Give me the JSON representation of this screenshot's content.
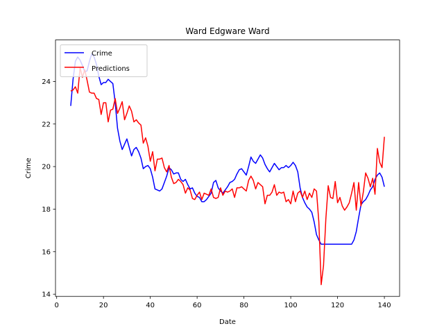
{
  "chart_data": {
    "type": "line",
    "title": "Ward Edgware Ward",
    "xlabel": "Date",
    "ylabel": "Crime",
    "xlim": [
      -0.5,
      146.5
    ],
    "ylim": [
      13.9,
      25.95
    ],
    "xticks": [
      0,
      20,
      40,
      60,
      80,
      100,
      120,
      140
    ],
    "yticks": [
      14,
      16,
      18,
      20,
      22,
      24
    ],
    "grid": false,
    "legend": "upper-left",
    "series": [
      {
        "name": "Crime",
        "color": "#0000ff",
        "x": [
          6,
          7,
          8,
          9,
          10,
          11,
          12,
          13,
          14,
          15,
          16,
          17,
          18,
          19,
          20,
          21,
          22,
          23,
          24,
          25,
          26,
          27,
          28,
          29,
          30,
          31,
          32,
          33,
          34,
          35,
          36,
          37,
          38,
          39,
          40,
          41,
          42,
          43,
          44,
          45,
          46,
          47,
          48,
          49,
          50,
          51,
          52,
          53,
          54,
          55,
          56,
          57,
          58,
          59,
          60,
          61,
          62,
          63,
          64,
          65,
          66,
          67,
          68,
          69,
          70,
          71,
          72,
          73,
          74,
          75,
          76,
          77,
          78,
          79,
          80,
          81,
          82,
          83,
          84,
          85,
          86,
          87,
          88,
          89,
          90,
          91,
          92,
          93,
          94,
          95,
          96,
          97,
          98,
          99,
          100,
          101,
          102,
          103,
          104,
          105,
          106,
          107,
          108,
          109,
          110,
          111,
          112,
          113,
          114,
          115,
          116,
          117,
          118,
          119,
          120,
          121,
          122,
          123,
          124,
          125,
          126,
          127,
          128,
          129,
          130,
          131,
          132,
          133,
          134,
          135,
          136,
          137,
          138,
          139,
          140
        ],
        "y": [
          22.85,
          24.1,
          24.95,
          25.15,
          25.0,
          24.75,
          24.45,
          24.5,
          24.95,
          25.3,
          25.15,
          24.8,
          24.25,
          23.85,
          23.95,
          23.95,
          24.1,
          24.0,
          23.9,
          23.0,
          21.8,
          21.2,
          20.8,
          21.05,
          21.3,
          20.9,
          20.5,
          20.8,
          20.9,
          20.7,
          20.4,
          19.9,
          20.0,
          20.05,
          19.9,
          19.5,
          18.95,
          18.9,
          18.85,
          18.95,
          19.25,
          19.55,
          19.95,
          19.85,
          19.65,
          19.7,
          19.7,
          19.4,
          19.3,
          19.4,
          19.15,
          18.95,
          19.0,
          18.75,
          18.6,
          18.55,
          18.35,
          18.35,
          18.45,
          18.6,
          18.75,
          19.25,
          19.35,
          19.0,
          18.85,
          18.75,
          18.9,
          19.05,
          19.25,
          19.3,
          19.4,
          19.65,
          19.85,
          19.9,
          19.75,
          19.6,
          20.0,
          20.45,
          20.25,
          20.15,
          20.35,
          20.55,
          20.4,
          20.1,
          19.9,
          19.75,
          19.95,
          20.15,
          20.0,
          19.85,
          19.95,
          19.95,
          20.05,
          19.95,
          20.05,
          20.2,
          20.05,
          19.75,
          19.0,
          18.55,
          18.3,
          18.1,
          18.0,
          17.85,
          17.4,
          16.8,
          16.55,
          16.35,
          16.35,
          16.35,
          16.35,
          16.35,
          16.35,
          16.35,
          16.35,
          16.35,
          16.35,
          16.35,
          16.35,
          16.35,
          16.35,
          16.55,
          16.95,
          17.6,
          18.2,
          18.35,
          18.45,
          18.65,
          18.9,
          19.05,
          19.4,
          19.6,
          19.7,
          19.5,
          19.05
        ]
      },
      {
        "name": "Predictions",
        "color": "#ff0000",
        "x": [
          6,
          7,
          8,
          9,
          10,
          11,
          12,
          13,
          14,
          15,
          16,
          17,
          18,
          19,
          20,
          21,
          22,
          23,
          24,
          25,
          26,
          27,
          28,
          29,
          30,
          31,
          32,
          33,
          34,
          35,
          36,
          37,
          38,
          39,
          40,
          41,
          42,
          43,
          44,
          45,
          46,
          47,
          48,
          49,
          50,
          51,
          52,
          53,
          54,
          55,
          56,
          57,
          58,
          59,
          60,
          61,
          62,
          63,
          64,
          65,
          66,
          67,
          68,
          69,
          70,
          71,
          72,
          73,
          74,
          75,
          76,
          77,
          78,
          79,
          80,
          81,
          82,
          83,
          84,
          85,
          86,
          87,
          88,
          89,
          90,
          91,
          92,
          93,
          94,
          95,
          96,
          97,
          98,
          99,
          100,
          101,
          102,
          103,
          104,
          105,
          106,
          107,
          108,
          109,
          110,
          111,
          112,
          113,
          114,
          115,
          116,
          117,
          118,
          119,
          120,
          121,
          122,
          123,
          124,
          125,
          126,
          127,
          128,
          129,
          130,
          131,
          132,
          133,
          134,
          135,
          136,
          137,
          138,
          139,
          140
        ],
        "y": [
          23.55,
          23.6,
          23.75,
          23.45,
          24.65,
          24.2,
          24.55,
          24.05,
          23.5,
          23.45,
          23.45,
          23.2,
          23.15,
          22.45,
          23.0,
          23.0,
          22.1,
          22.65,
          22.7,
          23.2,
          22.5,
          22.75,
          23.05,
          22.2,
          22.5,
          22.85,
          22.6,
          22.1,
          22.2,
          22.05,
          21.95,
          21.1,
          21.35,
          20.95,
          20.25,
          20.7,
          19.8,
          20.35,
          20.35,
          20.4,
          19.95,
          19.75,
          20.05,
          19.5,
          19.2,
          19.25,
          19.4,
          19.3,
          19.15,
          18.75,
          19.0,
          18.9,
          18.5,
          18.45,
          18.65,
          18.8,
          18.45,
          18.75,
          18.7,
          18.65,
          18.95,
          18.55,
          18.5,
          18.55,
          19.0,
          18.65,
          18.85,
          18.8,
          18.85,
          18.95,
          18.55,
          19.0,
          19.0,
          19.05,
          18.95,
          18.85,
          19.35,
          19.55,
          19.35,
          18.95,
          19.25,
          19.15,
          19.05,
          18.25,
          18.65,
          18.65,
          18.8,
          19.15,
          18.65,
          18.8,
          18.75,
          18.8,
          18.35,
          18.45,
          18.25,
          18.85,
          18.35,
          18.75,
          18.85,
          18.55,
          18.85,
          18.45,
          18.75,
          18.55,
          18.95,
          18.85,
          17.4,
          14.45,
          15.35,
          17.55,
          19.1,
          18.55,
          18.5,
          19.3,
          18.3,
          18.55,
          18.15,
          17.95,
          18.1,
          18.3,
          18.75,
          19.25,
          17.95,
          19.25,
          18.15,
          18.8,
          19.7,
          19.45,
          19.05,
          19.45,
          18.7,
          20.85,
          20.2,
          19.95,
          21.4
        ]
      }
    ]
  }
}
